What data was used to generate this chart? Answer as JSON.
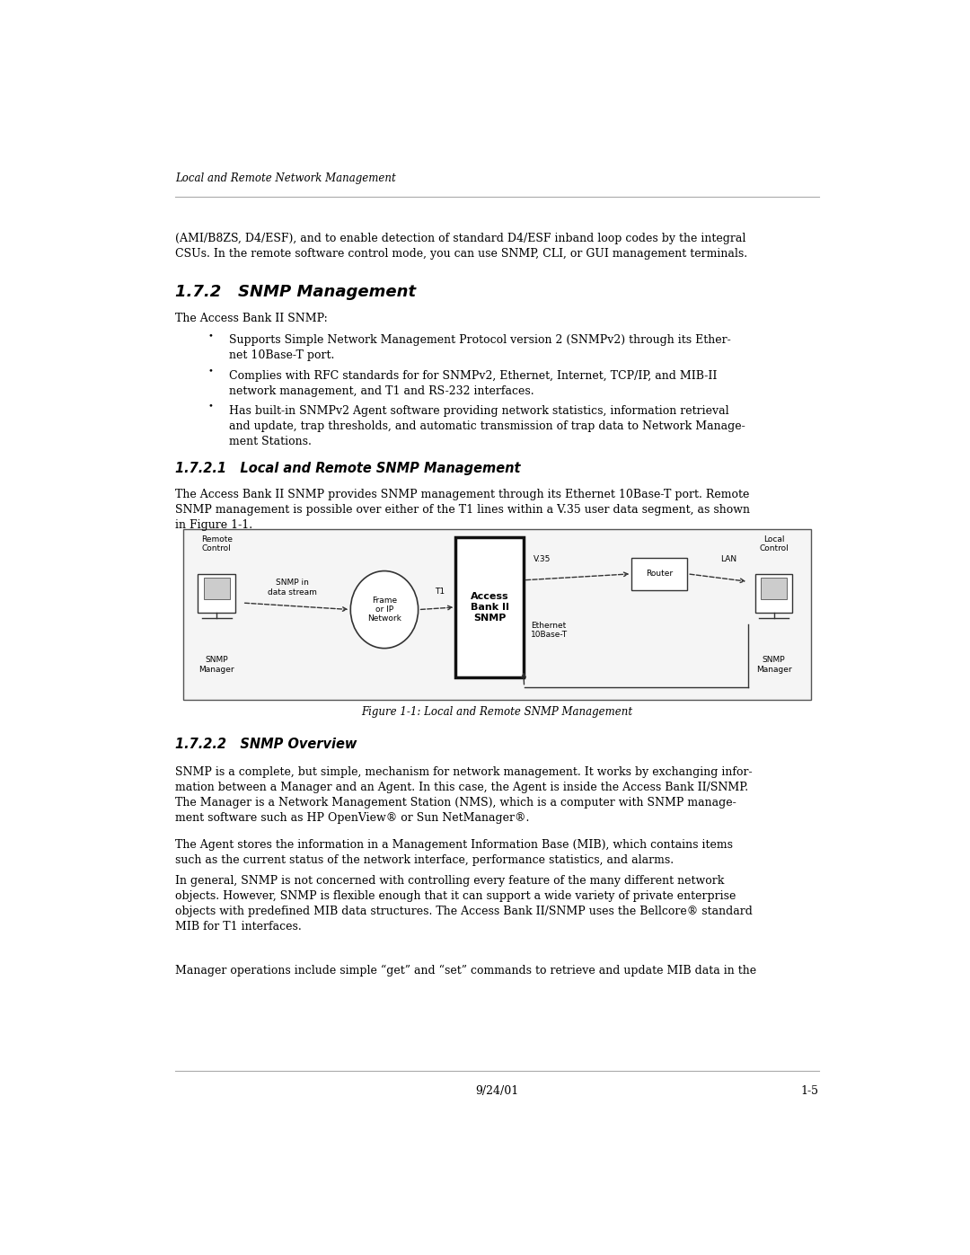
{
  "page_width": 10.8,
  "page_height": 13.97,
  "bg_color": "#ffffff",
  "header_text": "Local and Remote Network Management",
  "footer_date": "9/24/01",
  "footer_page": "1-5",
  "body_text_1": "(AMI/B8ZS, D4/ESF), and to enable detection of standard D4/ESF inband loop codes by the integral\nCSUs. In the remote software control mode, you can use SNMP, CLI, or GUI management terminals.",
  "section_172_title": "1.7.2   SNMP Management",
  "section_172_body": "The Access Bank II SNMP:",
  "bullet_1": "Supports Simple Network Management Protocol version 2 (SNMPv2) through its Ether-\nnet 10Base-T port.",
  "bullet_2": "Complies with RFC standards for for SNMPv2, Ethernet, Internet, TCP/IP, and MIB-II\nnetwork management, and T1 and RS-232 interfaces.",
  "bullet_3": "Has built-in SNMPv2 Agent software providing network statistics, information retrieval\nand update, trap thresholds, and automatic transmission of trap data to Network Manage-\nment Stations.",
  "section_1721_title": "1.7.2.1   Local and Remote SNMP Management",
  "section_1721_body": "The Access Bank II SNMP provides SNMP management through its Ethernet 10Base-T port. Remote\nSNMP management is possible over either of the T1 lines within a V.35 user data segment, as shown\nin Figure 1-1.",
  "figure_caption": "Figure 1-1: Local and Remote SNMP Management",
  "section_1722_title": "1.7.2.2   SNMP Overview",
  "section_1722_body_1": "SNMP is a complete, but simple, mechanism for network management. It works by exchanging infor-\nmation between a Manager and an Agent. In this case, the Agent is inside the Access Bank II/SNMP.\nThe Manager is a Network Management Station (NMS), which is a computer with SNMP manage-\nment software such as HP OpenView® or Sun NetManager®.",
  "section_1722_body_2": "The Agent stores the information in a Management Information Base (MIB), which contains items\nsuch as the current status of the network interface, performance statistics, and alarms.",
  "section_1722_body_3": "In general, SNMP is not concerned with controlling every feature of the many different network\nobjects. However, SNMP is flexible enough that it can support a wide variety of private enterprise\nobjects with predefined MIB data structures. The Access Bank II/SNMP uses the Bellcore® standard\nMIB for T1 interfaces.",
  "section_1722_body_4": "Manager operations include simple “get” and “set” commands to retrieve and update MIB data in the",
  "text_color": "#000000",
  "section_color": "#000000",
  "line_color": "#aaaaaa"
}
